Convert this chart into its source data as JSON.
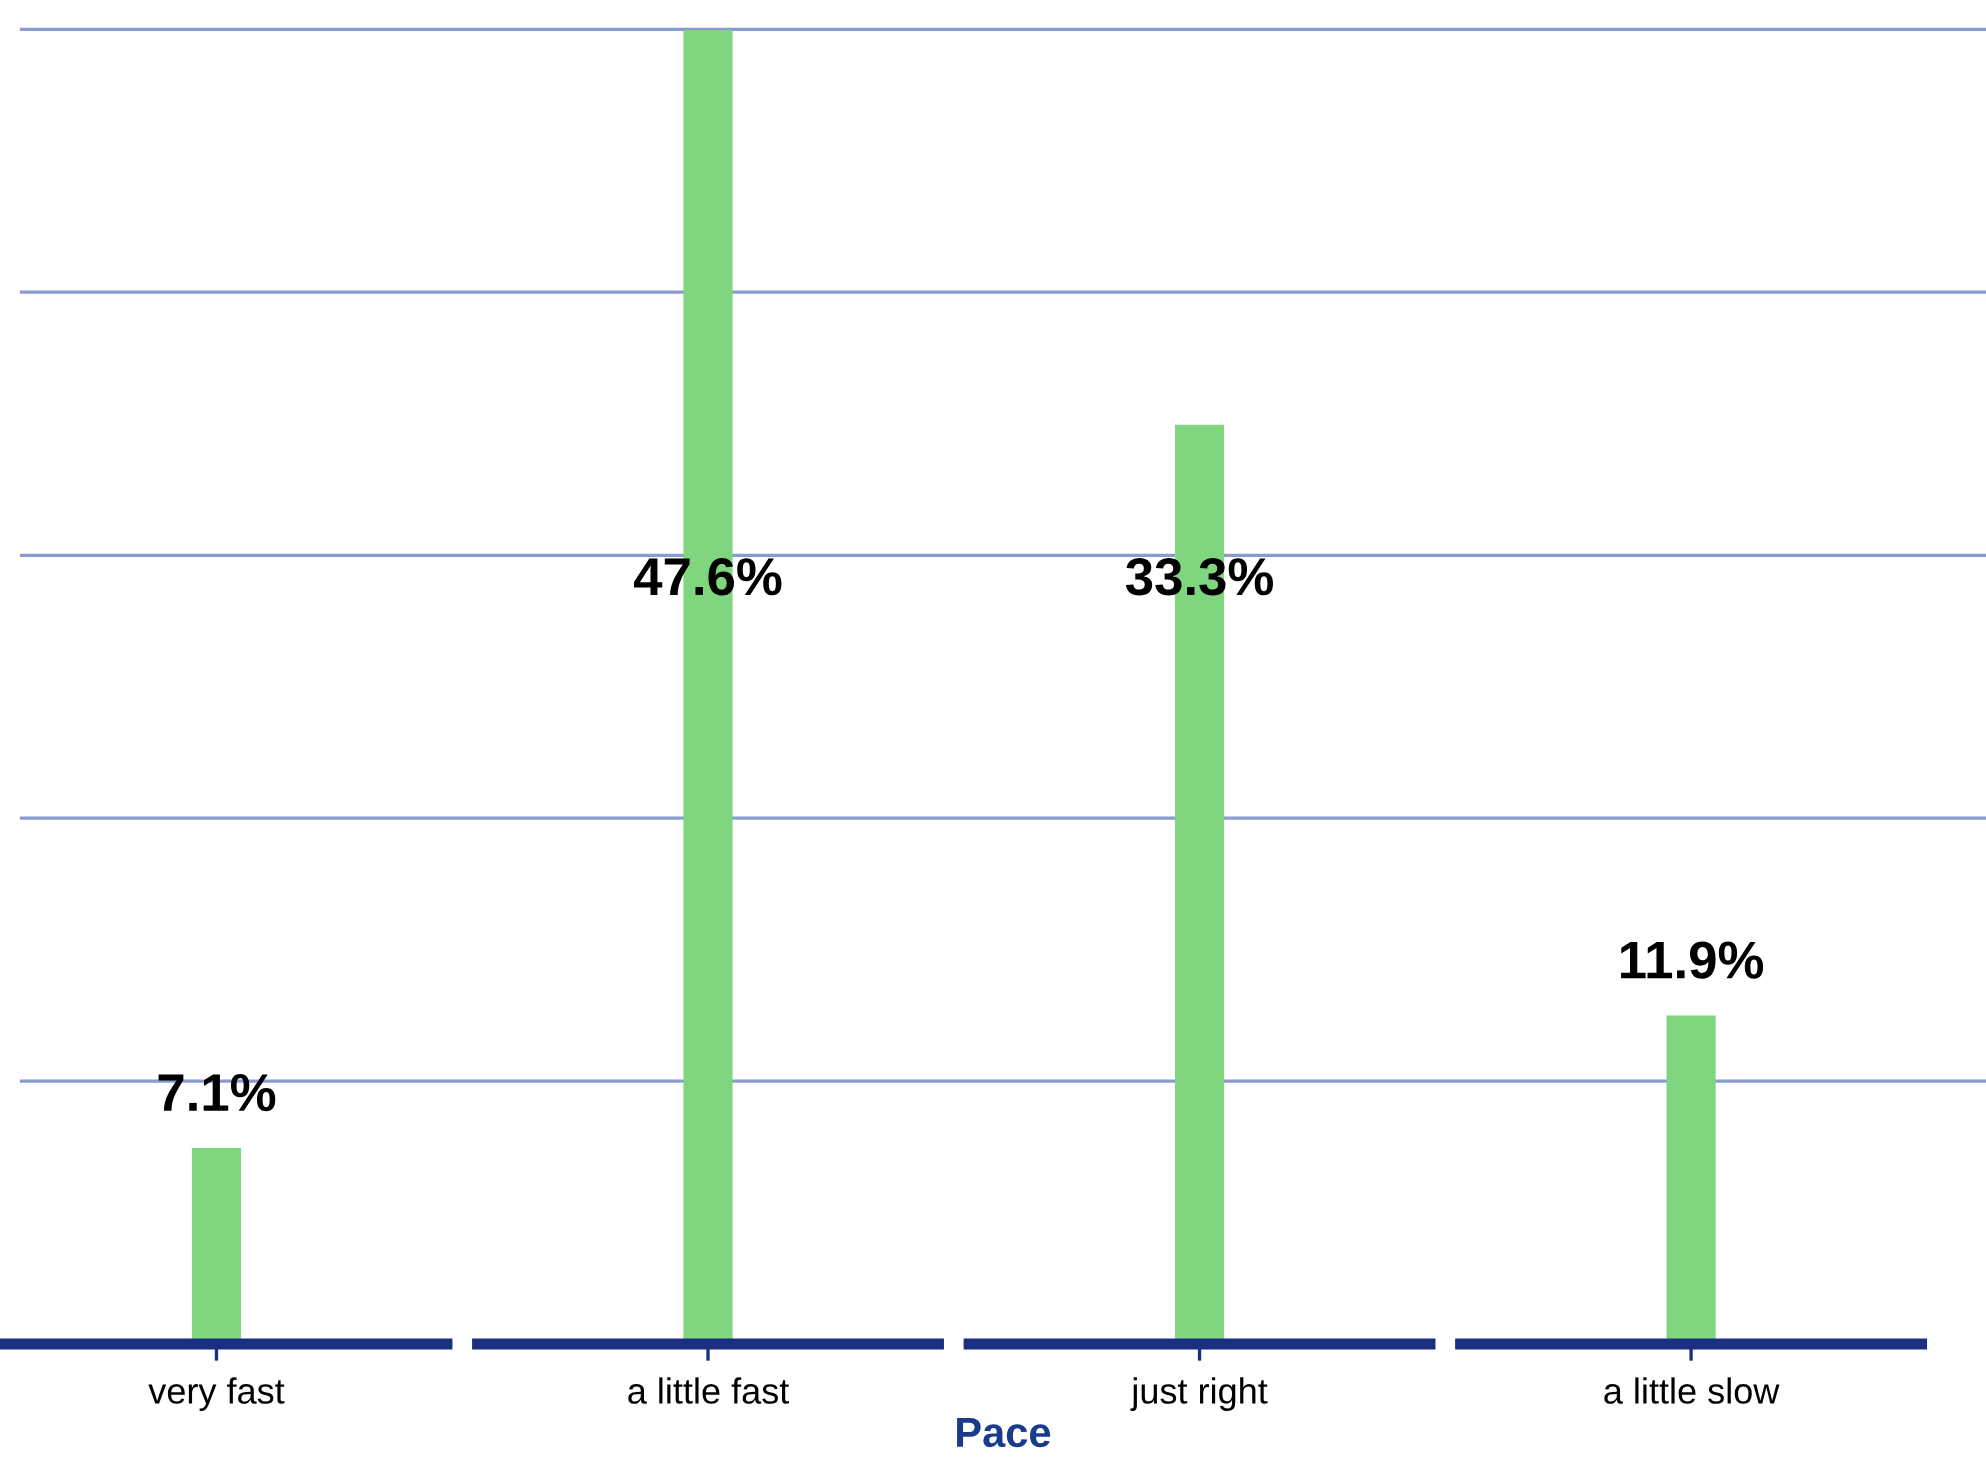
{
  "chart_data": {
    "type": "bar",
    "xlabel": "Pace",
    "categories": [
      "very fast",
      "a little fast",
      "just right",
      "a little slow"
    ],
    "values": [
      7.1,
      47.6,
      33.3,
      11.9
    ],
    "value_labels": [
      "7.1%",
      "47.6%",
      "33.3%",
      "11.9%"
    ],
    "color": "#7fd67f",
    "tick_labels": "x",
    "ref_lines": [
      {
        "axis": "y",
        "value": 9.52,
        "color": "#8a9bd0"
      },
      {
        "axis": "y",
        "value": 19.05,
        "color": "#8a9bd0"
      },
      {
        "axis": "y",
        "value": 28.57,
        "color": "#8a9bd0"
      },
      {
        "axis": "y",
        "value": 38.1,
        "color": "#8a9bd0"
      },
      {
        "axis": "y",
        "value": 47.62,
        "color": "#8a9bd0"
      }
    ]
  }
}
